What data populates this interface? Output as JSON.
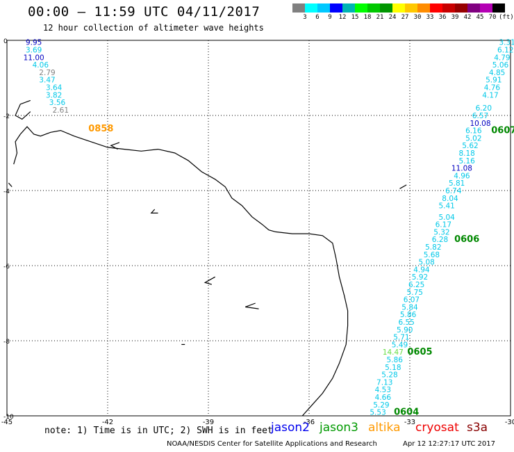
{
  "header": {
    "title": "00:00 – 11:59 UTC 04/11/2017",
    "subtitle": "12 hour collection of altimeter wave heights"
  },
  "colorbar": {
    "colors": [
      "#808080",
      "#00ffff",
      "#00c8ff",
      "#0000ff",
      "#00b4b4",
      "#00ff00",
      "#00c800",
      "#009600",
      "#ffff00",
      "#ffc800",
      "#ff8c00",
      "#ff0000",
      "#c80000",
      "#960000",
      "#800080",
      "#b400b4",
      "#000000"
    ],
    "labels": [
      "3",
      "6",
      "9",
      "12",
      "15",
      "18",
      "21",
      "24",
      "27",
      "30",
      "33",
      "36",
      "39",
      "42",
      "45",
      "70",
      "(ft)"
    ]
  },
  "axes": {
    "x_ticks": [
      "-45",
      "-42",
      "-39",
      "-36",
      "-33",
      "-30"
    ],
    "y_ticks": [
      "0",
      "-2",
      "-4",
      "-6",
      "-8",
      "-10"
    ]
  },
  "map_data": {
    "lon_range": [
      -45,
      -30
    ],
    "lat_range": [
      -10,
      0
    ],
    "coastline": [
      [
        -44.8,
        -3.3
      ],
      [
        -44.7,
        -3.0
      ],
      [
        -44.75,
        -2.7
      ],
      [
        -44.6,
        -2.5
      ],
      [
        -44.4,
        -2.3
      ],
      [
        -44.2,
        -2.5
      ],
      [
        -44.0,
        -2.55
      ],
      [
        -43.7,
        -2.45
      ],
      [
        -43.4,
        -2.4
      ],
      [
        -43.0,
        -2.55
      ],
      [
        -42.5,
        -2.7
      ],
      [
        -42.0,
        -2.85
      ],
      [
        -41.5,
        -2.9
      ],
      [
        -41.0,
        -2.95
      ],
      [
        -40.5,
        -2.9
      ],
      [
        -40.0,
        -3.0
      ],
      [
        -39.6,
        -3.2
      ],
      [
        -39.2,
        -3.5
      ],
      [
        -38.8,
        -3.7
      ],
      [
        -38.5,
        -3.9
      ],
      [
        -38.3,
        -4.2
      ],
      [
        -38.0,
        -4.4
      ],
      [
        -37.7,
        -4.7
      ],
      [
        -37.4,
        -4.9
      ],
      [
        -37.2,
        -5.05
      ],
      [
        -37.0,
        -5.1
      ],
      [
        -36.5,
        -5.15
      ],
      [
        -36.0,
        -5.15
      ],
      [
        -35.6,
        -5.2
      ],
      [
        -35.3,
        -5.4
      ],
      [
        -35.2,
        -5.8
      ],
      [
        -35.1,
        -6.3
      ],
      [
        -34.95,
        -6.8
      ],
      [
        -34.85,
        -7.2
      ],
      [
        -34.85,
        -7.6
      ],
      [
        -34.9,
        -8.1
      ],
      [
        -35.1,
        -8.6
      ],
      [
        -35.3,
        -9.0
      ],
      [
        -35.6,
        -9.4
      ],
      [
        -35.9,
        -9.7
      ],
      [
        -36.2,
        -10.0
      ]
    ],
    "islands": [
      [
        [
          -44.3,
          -1.6
        ],
        [
          -44.6,
          -1.7
        ],
        [
          -44.75,
          -2.0
        ],
        [
          -44.55,
          -2.1
        ],
        [
          -44.3,
          -1.9
        ]
      ],
      [
        [
          -44.95,
          -3.8
        ],
        [
          -44.85,
          -3.9
        ]
      ],
      [
        [
          -41.65,
          -2.72
        ],
        [
          -41.9,
          -2.8
        ],
        [
          -41.7,
          -2.9
        ]
      ],
      [
        [
          -40.6,
          -4.5
        ],
        [
          -40.7,
          -4.6
        ],
        [
          -40.5,
          -4.6
        ]
      ],
      [
        [
          -38.8,
          -6.3
        ],
        [
          -39.1,
          -6.45
        ],
        [
          -38.9,
          -6.5
        ]
      ],
      [
        [
          -37.6,
          -7.0
        ],
        [
          -37.9,
          -7.1
        ],
        [
          -37.5,
          -7.15
        ]
      ],
      [
        [
          -33.1,
          -3.85
        ],
        [
          -33.3,
          -3.95
        ]
      ],
      [
        [
          -39.8,
          -8.1
        ],
        [
          -39.7,
          -8.1
        ]
      ]
    ],
    "labels": [
      {
        "text": "9.95",
        "lon": -44.2,
        "lat": -0.05,
        "color": "#0000c0"
      },
      {
        "text": "3.69",
        "lon": -44.2,
        "lat": -0.25,
        "color": "#00c8e8"
      },
      {
        "text": "11.00",
        "lon": -44.2,
        "lat": -0.45,
        "color": "#0000c0"
      },
      {
        "text": "4.06",
        "lon": -44.0,
        "lat": -0.65,
        "color": "#00c8e8"
      },
      {
        "text": "2.79",
        "lon": -43.8,
        "lat": -0.85,
        "color": "#808080"
      },
      {
        "text": "3.47",
        "lon": -43.8,
        "lat": -1.05,
        "color": "#00c8e8"
      },
      {
        "text": "3.64",
        "lon": -43.6,
        "lat": -1.25,
        "color": "#00c8e8"
      },
      {
        "text": "3.82",
        "lon": -43.6,
        "lat": -1.45,
        "color": "#00c8e8"
      },
      {
        "text": "3.56",
        "lon": -43.5,
        "lat": -1.65,
        "color": "#00c8e8"
      },
      {
        "text": "2.61",
        "lon": -43.4,
        "lat": -1.85,
        "color": "#808080"
      },
      {
        "text": "0858",
        "lon": -42.2,
        "lat": -2.35,
        "color": "#ff9900",
        "bold": true,
        "size": 13
      },
      {
        "text": "3.31",
        "lon": -30.1,
        "lat": -0.05,
        "color": "#00c8e8"
      },
      {
        "text": "6.12",
        "lon": -30.15,
        "lat": -0.25,
        "color": "#00c8e8"
      },
      {
        "text": "4.79",
        "lon": -30.25,
        "lat": -0.45,
        "color": "#00c8e8"
      },
      {
        "text": "5.06",
        "lon": -30.3,
        "lat": -0.65,
        "color": "#00c8e8"
      },
      {
        "text": "4.85",
        "lon": -30.4,
        "lat": -0.85,
        "color": "#00c8e8"
      },
      {
        "text": "5.91",
        "lon": -30.5,
        "lat": -1.05,
        "color": "#00c8e8"
      },
      {
        "text": "4.76",
        "lon": -30.55,
        "lat": -1.25,
        "color": "#00c8e8"
      },
      {
        "text": "4.17",
        "lon": -30.6,
        "lat": -1.45,
        "color": "#00c8e8"
      },
      {
        "text": "6.20",
        "lon": -30.8,
        "lat": -1.8,
        "color": "#00c8e8"
      },
      {
        "text": "6.57",
        "lon": -30.9,
        "lat": -2.0,
        "color": "#00c8e8"
      },
      {
        "text": "10.08",
        "lon": -30.9,
        "lat": -2.2,
        "color": "#0000c0"
      },
      {
        "text": "6.16",
        "lon": -31.1,
        "lat": -2.4,
        "color": "#00c8e8"
      },
      {
        "text": "0607",
        "lon": -30.2,
        "lat": -2.4,
        "color": "#008800",
        "bold": true,
        "size": 13
      },
      {
        "text": "5.02",
        "lon": -31.1,
        "lat": -2.6,
        "color": "#00c8e8"
      },
      {
        "text": "5.62",
        "lon": -31.2,
        "lat": -2.8,
        "color": "#00c8e8"
      },
      {
        "text": "8.18",
        "lon": -31.3,
        "lat": -3.0,
        "color": "#00c8e8"
      },
      {
        "text": "5.16",
        "lon": -31.3,
        "lat": -3.2,
        "color": "#00c8e8"
      },
      {
        "text": "11.08",
        "lon": -31.45,
        "lat": -3.4,
        "color": "#0000c0"
      },
      {
        "text": "4.96",
        "lon": -31.45,
        "lat": -3.6,
        "color": "#00c8e8"
      },
      {
        "text": "5.81",
        "lon": -31.6,
        "lat": -3.8,
        "color": "#00c8e8"
      },
      {
        "text": "6.74",
        "lon": -31.7,
        "lat": -4.0,
        "color": "#00c8e8"
      },
      {
        "text": "8.04",
        "lon": -31.8,
        "lat": -4.2,
        "color": "#00c8e8"
      },
      {
        "text": "5.41",
        "lon": -31.9,
        "lat": -4.4,
        "color": "#00c8e8"
      },
      {
        "text": "5.04",
        "lon": -31.9,
        "lat": -4.7,
        "color": "#00c8e8"
      },
      {
        "text": "6.17",
        "lon": -32.0,
        "lat": -4.9,
        "color": "#00c8e8"
      },
      {
        "text": "5.32",
        "lon": -32.05,
        "lat": -5.1,
        "color": "#00c8e8"
      },
      {
        "text": "6.28",
        "lon": -32.1,
        "lat": -5.3,
        "color": "#00c8e8"
      },
      {
        "text": "0606",
        "lon": -31.3,
        "lat": -5.3,
        "color": "#008800",
        "bold": true,
        "size": 13
      },
      {
        "text": "5.82",
        "lon": -32.3,
        "lat": -5.5,
        "color": "#00c8e8"
      },
      {
        "text": "5.68",
        "lon": -32.35,
        "lat": -5.7,
        "color": "#00c8e8"
      },
      {
        "text": "5.08",
        "lon": -32.5,
        "lat": -5.9,
        "color": "#00c8e8"
      },
      {
        "text": "4.94",
        "lon": -32.65,
        "lat": -6.1,
        "color": "#00c8e8"
      },
      {
        "text": "5.92",
        "lon": -32.7,
        "lat": -6.3,
        "color": "#00c8e8"
      },
      {
        "text": "6.25",
        "lon": -32.8,
        "lat": -6.5,
        "color": "#00c8e8"
      },
      {
        "text": "5.75",
        "lon": -32.85,
        "lat": -6.7,
        "color": "#00c8e8"
      },
      {
        "text": "6.07",
        "lon": -32.95,
        "lat": -6.9,
        "color": "#00c8e8"
      },
      {
        "text": "5.84",
        "lon": -33.0,
        "lat": -7.1,
        "color": "#00c8e8"
      },
      {
        "text": "5.86",
        "lon": -33.05,
        "lat": -7.3,
        "color": "#00c8e8"
      },
      {
        "text": "6.55",
        "lon": -33.1,
        "lat": -7.5,
        "color": "#00c8e8"
      },
      {
        "text": "5.90",
        "lon": -33.15,
        "lat": -7.7,
        "color": "#00c8e8"
      },
      {
        "text": "5.71",
        "lon": -33.25,
        "lat": -7.9,
        "color": "#00c8e8"
      },
      {
        "text": "5.49",
        "lon": -33.3,
        "lat": -8.1,
        "color": "#00c8e8"
      },
      {
        "text": "14.47",
        "lon": -33.5,
        "lat": -8.3,
        "color": "#66dd44"
      },
      {
        "text": "0605",
        "lon": -32.7,
        "lat": -8.3,
        "color": "#008800",
        "bold": true,
        "size": 13
      },
      {
        "text": "5.86",
        "lon": -33.45,
        "lat": -8.5,
        "color": "#00c8e8"
      },
      {
        "text": "5.18",
        "lon": -33.5,
        "lat": -8.7,
        "color": "#00c8e8"
      },
      {
        "text": "5.28",
        "lon": -33.6,
        "lat": -8.9,
        "color": "#00c8e8"
      },
      {
        "text": "7.13",
        "lon": -33.75,
        "lat": -9.1,
        "color": "#00c8e8"
      },
      {
        "text": "4.53",
        "lon": -33.8,
        "lat": -9.3,
        "color": "#00c8e8"
      },
      {
        "text": "4.66",
        "lon": -33.8,
        "lat": -9.5,
        "color": "#00c8e8"
      },
      {
        "text": "5.29",
        "lon": -33.85,
        "lat": -9.7,
        "color": "#00c8e8"
      },
      {
        "text": "5.53",
        "lon": -33.95,
        "lat": -9.9,
        "color": "#00c8e8"
      },
      {
        "text": "0604",
        "lon": -33.1,
        "lat": -9.9,
        "color": "#008800",
        "bold": true,
        "size": 13
      }
    ]
  },
  "note": "note: 1) Time is in UTC; 2) SWH is in feet",
  "legend": [
    {
      "label": "jason2",
      "color": "#0000ee"
    },
    {
      "label": "jason3",
      "color": "#009900"
    },
    {
      "label": "altika",
      "color": "#ff9900"
    },
    {
      "label": "cryosat",
      "color": "#ee0000"
    },
    {
      "label": "s3a",
      "color": "#880000"
    }
  ],
  "footer": {
    "credit": "NOAA/NESDIS Center for Satellite Applications and Research",
    "timestamp": "Apr 12 12:27:17 UTC 2017"
  }
}
